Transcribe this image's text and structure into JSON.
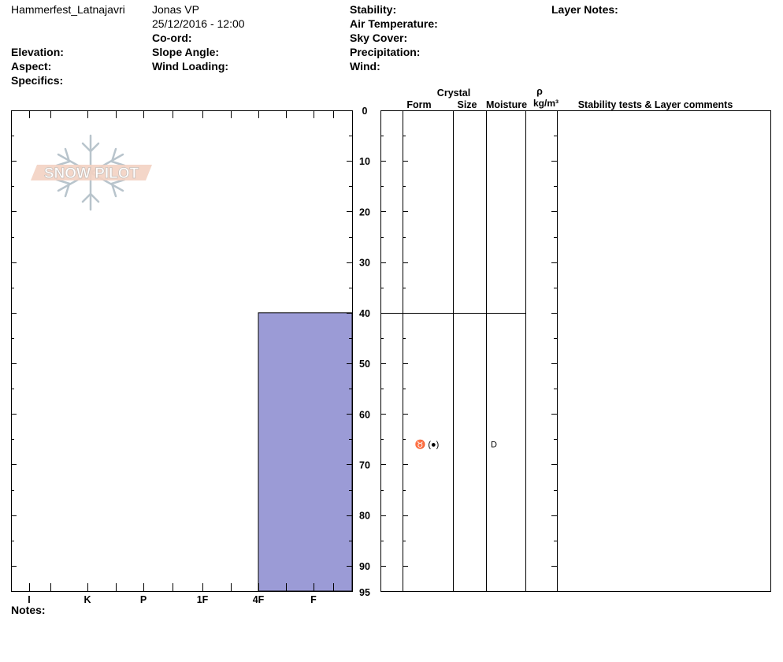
{
  "header": {
    "location": "Hammerfest_Latnajavri",
    "observer": "Jonas VP",
    "datetime": "25/12/2016 - 12:00",
    "coord_label": "Co-ord:",
    "elevation_label": "Elevation:",
    "aspect_label": "Aspect:",
    "specifics_label": "Specifics:",
    "slope_angle_label": "Slope Angle:",
    "wind_loading_label": "Wind Loading:",
    "stability_label": "Stability:",
    "air_temperature_label": "Air Temperature:",
    "sky_cover_label": "Sky Cover:",
    "precipitation_label": "Precipitation:",
    "wind_label": "Wind:",
    "layer_notes_label": "Layer Notes:"
  },
  "columns": {
    "crystal": "Crystal",
    "form": "Form",
    "size": "Size",
    "moisture": "Moisture",
    "rho": "ρ",
    "density_unit": "kg/m³",
    "comments": "Stability tests & Layer comments"
  },
  "logo_text": "SNOW PILOT",
  "notes_label": "Notes:",
  "chart_data": {
    "type": "bar",
    "title": "",
    "y_axis": {
      "ticks": [
        0,
        10,
        20,
        30,
        40,
        50,
        60,
        70,
        80,
        90
      ],
      "bottom_label": "95",
      "range": [
        0,
        95
      ],
      "inverted": true
    },
    "hardness_ticks": [
      "I",
      "K",
      "P",
      "1F",
      "4F",
      "F"
    ],
    "layers": [
      {
        "top": 40,
        "bottom": 95,
        "hardness": "F",
        "form_symbol": "♉ (●)",
        "moisture": "D"
      }
    ],
    "layer_boundaries": [
      40
    ],
    "bar_color": "#9b9bd6"
  }
}
